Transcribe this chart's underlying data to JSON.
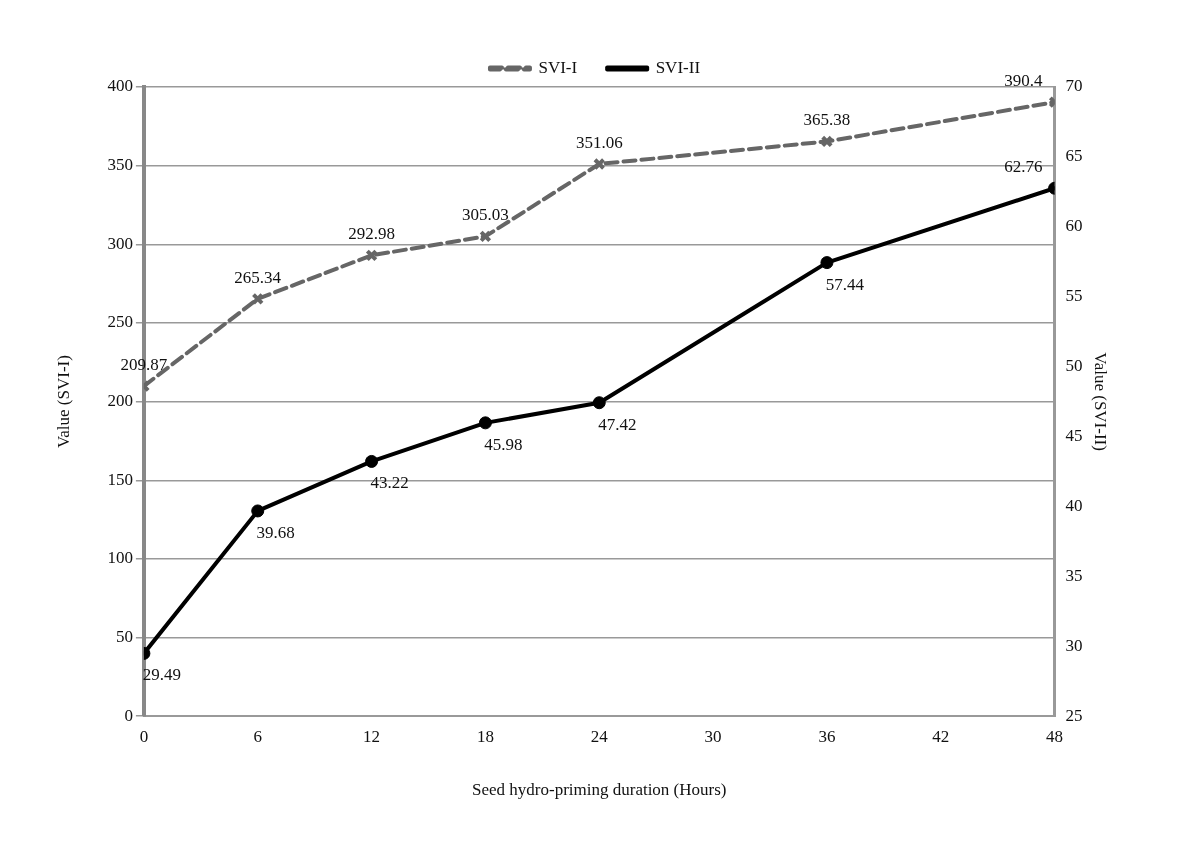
{
  "chart_data": {
    "type": "line",
    "xlabel": "Seed hydro-priming duration (Hours)",
    "ylabel": "Value (SVI-I)",
    "y2label": "Value (SVI-II)",
    "x": [
      0,
      6,
      12,
      18,
      24,
      36,
      48
    ],
    "series": [
      {
        "name": "SVI-I",
        "color": "#666666",
        "values": [
          209.87,
          265.34,
          292.98,
          305.03,
          351.06,
          365.38,
          390.4
        ],
        "marker": "cross",
        "line_style": "dashed"
      },
      {
        "name": "SVI-II",
        "color": "#000000",
        "values": [
          29.49,
          39.68,
          43.22,
          45.98,
          47.42,
          57.44,
          62.76
        ],
        "marker": "circle",
        "line_style": "solid",
        "axis": "y2"
      }
    ],
    "xlim": [
      0,
      48
    ],
    "xticks": [
      0,
      6,
      12,
      18,
      24,
      30,
      36,
      42,
      48
    ],
    "ylim": [
      0,
      400
    ],
    "yticks": [
      0,
      50,
      100,
      150,
      200,
      250,
      300,
      350,
      400
    ],
    "y2lim": [
      25,
      70
    ],
    "y2ticks": [
      25,
      30,
      35,
      40,
      45,
      50,
      55,
      60,
      65,
      70
    ],
    "grid": "y",
    "legend": "top",
    "data_labels": true
  }
}
